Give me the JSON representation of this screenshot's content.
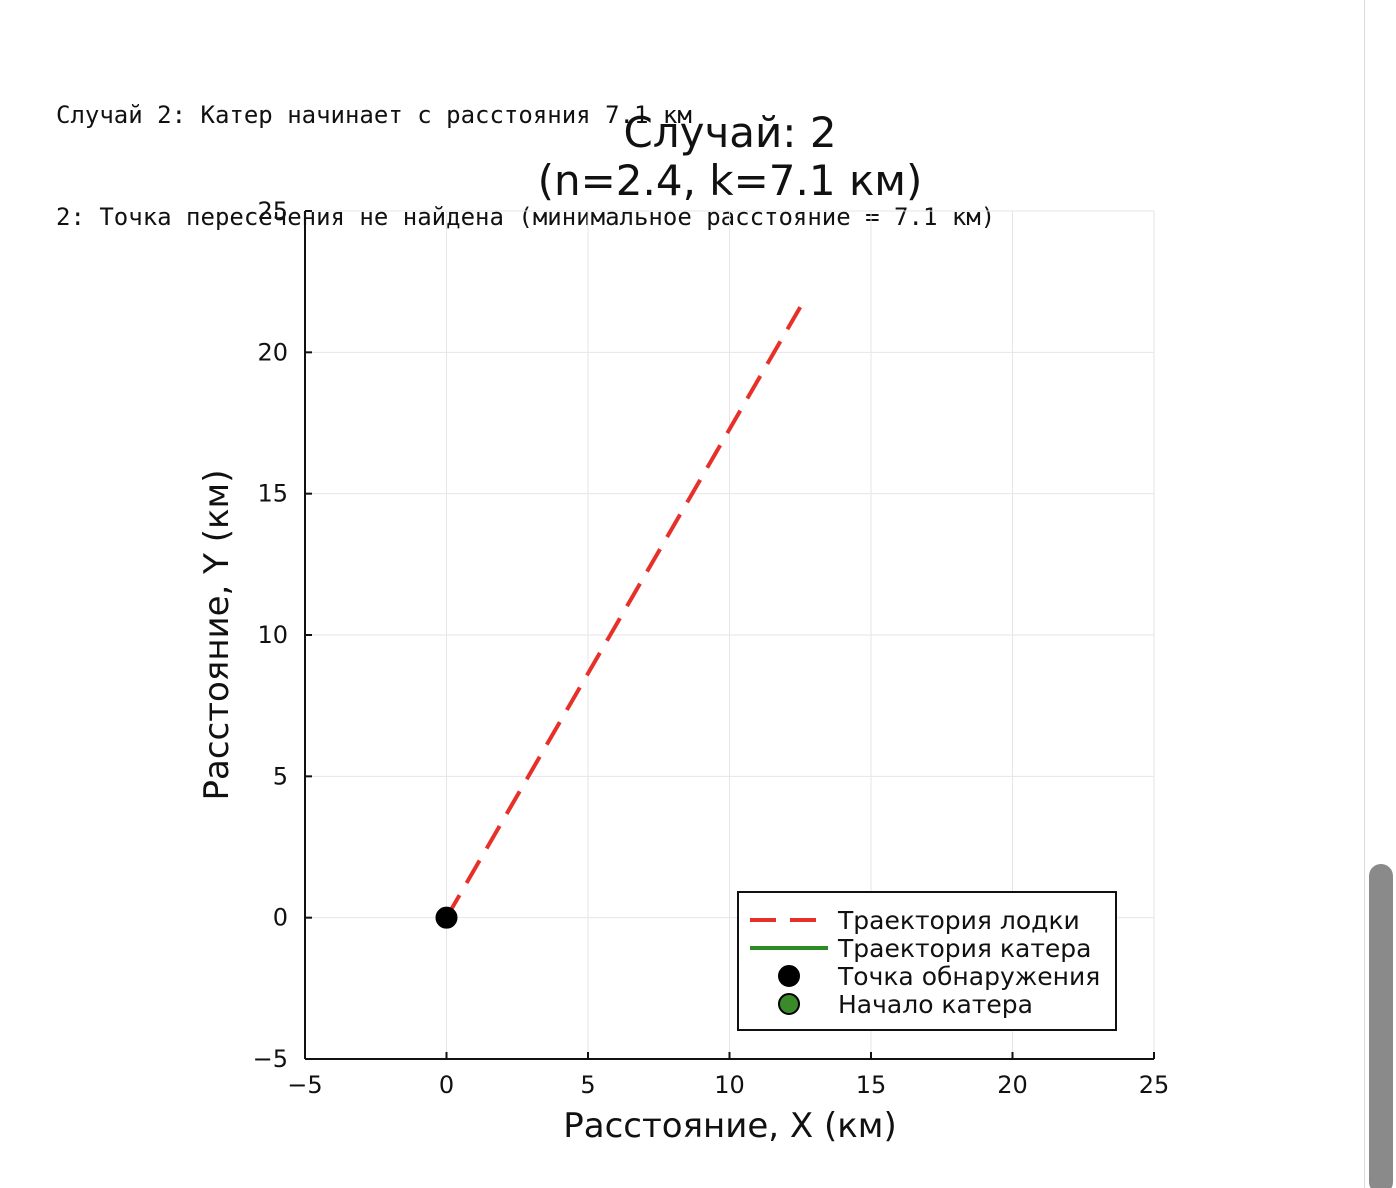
{
  "console": {
    "lines": [
      "Случай 2: Катер начинает с расстояния 7.1 км",
      "2: Точка пересечения не найдена (минимальное расстояние = 7.1 км)"
    ]
  },
  "chart_data": {
    "type": "line",
    "title_line1": "Случай: 2",
    "title_line2": "(n=2.4, k=7.1 км)",
    "xlabel": "Расстояние, X (км)",
    "ylabel": "Расстояние, Y (км)",
    "xlim": [
      -5,
      25
    ],
    "ylim": [
      -5,
      25
    ],
    "xticks": [
      -5,
      0,
      5,
      10,
      15,
      20,
      25
    ],
    "yticks": [
      -5,
      0,
      5,
      10,
      15,
      20,
      25
    ],
    "xtick_labels": [
      "−5",
      "0",
      "5",
      "10",
      "15",
      "20",
      "25"
    ],
    "ytick_labels": [
      "−5",
      "0",
      "5",
      "10",
      "15",
      "20",
      "25"
    ],
    "grid": true,
    "legend_position": "bottom-right",
    "series": [
      {
        "name": "Траектория лодки",
        "style": "dashed",
        "color": "#e8302a",
        "x": [
          0,
          12.5
        ],
        "y": [
          0,
          21.6
        ]
      },
      {
        "name": "Траектория катера",
        "style": "solid",
        "color": "#2e8a22",
        "x": [],
        "y": []
      }
    ],
    "points": [
      {
        "name": "Точка обнаружения",
        "x": 0,
        "y": 0,
        "color": "#000000"
      },
      {
        "name": "Начало катера",
        "x": null,
        "y": null,
        "color": "#3a8a2a"
      }
    ],
    "legend": [
      {
        "label": "Траектория лодки",
        "kind": "dashed-line",
        "color": "#e8302a"
      },
      {
        "label": "Траектория катера",
        "kind": "solid-line",
        "color": "#2e8a22"
      },
      {
        "label": "Точка обнаружения",
        "kind": "marker",
        "color": "#000000"
      },
      {
        "label": "Начало катера",
        "kind": "marker",
        "color": "#3a8a2a"
      }
    ]
  }
}
